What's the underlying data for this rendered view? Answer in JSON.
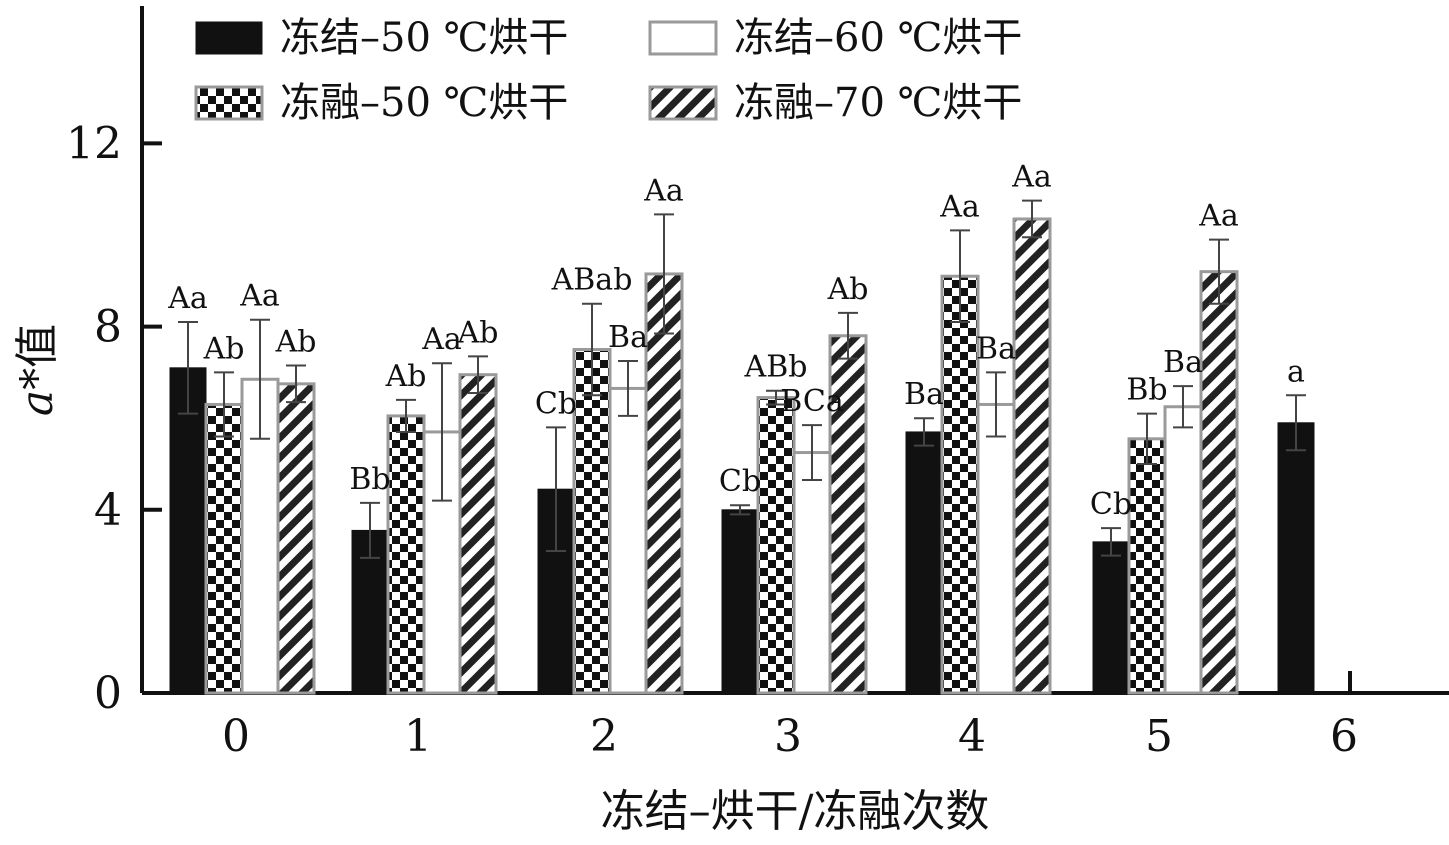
{
  "chart_data": {
    "type": "bar",
    "categories": [
      "0",
      "1",
      "2",
      "3",
      "4",
      "5",
      "6"
    ],
    "xlabel": "冻结–烘干/冻融次数",
    "ylabel_italic": "a",
    "ylabel_rest": "*值",
    "ylim": [
      0,
      15
    ],
    "yticks": [
      0,
      4,
      8,
      12
    ],
    "grid": false,
    "legend_position": "top-left",
    "series": [
      {
        "name": "冻结–50 ℃烘干",
        "pattern": "solid",
        "values": [
          7.1,
          3.55,
          4.45,
          4.0,
          5.7,
          3.3,
          5.9
        ],
        "errors": [
          1.0,
          0.6,
          1.35,
          0.1,
          0.3,
          0.3,
          0.6
        ],
        "labels": [
          "Aa",
          "Bb",
          "Cb",
          "Cb",
          "Ba",
          "Cb",
          "a"
        ]
      },
      {
        "name": "冻融–50 ℃烘干",
        "pattern": "checker",
        "values": [
          6.3,
          6.05,
          7.5,
          6.45,
          9.1,
          5.55,
          null
        ],
        "errors": [
          0.7,
          0.35,
          1.0,
          0.15,
          1.0,
          0.55,
          null
        ],
        "labels": [
          "Ab",
          "Ab",
          "ABab",
          "ABb",
          "Aa",
          "Bb",
          null
        ]
      },
      {
        "name": "冻结–60 ℃烘干",
        "pattern": "white",
        "values": [
          6.85,
          5.7,
          6.65,
          5.25,
          6.3,
          6.25,
          null
        ],
        "errors": [
          1.3,
          1.5,
          0.6,
          0.6,
          0.7,
          0.45,
          null
        ],
        "labels": [
          "Aa",
          "Aa",
          "Ba",
          "BCa",
          "Ba",
          "Ba",
          null
        ]
      },
      {
        "name": "冻融–70 ℃烘干",
        "pattern": "hatch",
        "values": [
          6.75,
          6.95,
          9.15,
          7.8,
          10.35,
          9.2,
          null
        ],
        "errors": [
          0.4,
          0.4,
          1.3,
          0.5,
          0.4,
          0.7,
          null
        ],
        "labels": [
          "Ab",
          "Ab",
          "Aa",
          "Ab",
          "Aa",
          "Aa",
          null
        ]
      }
    ]
  }
}
